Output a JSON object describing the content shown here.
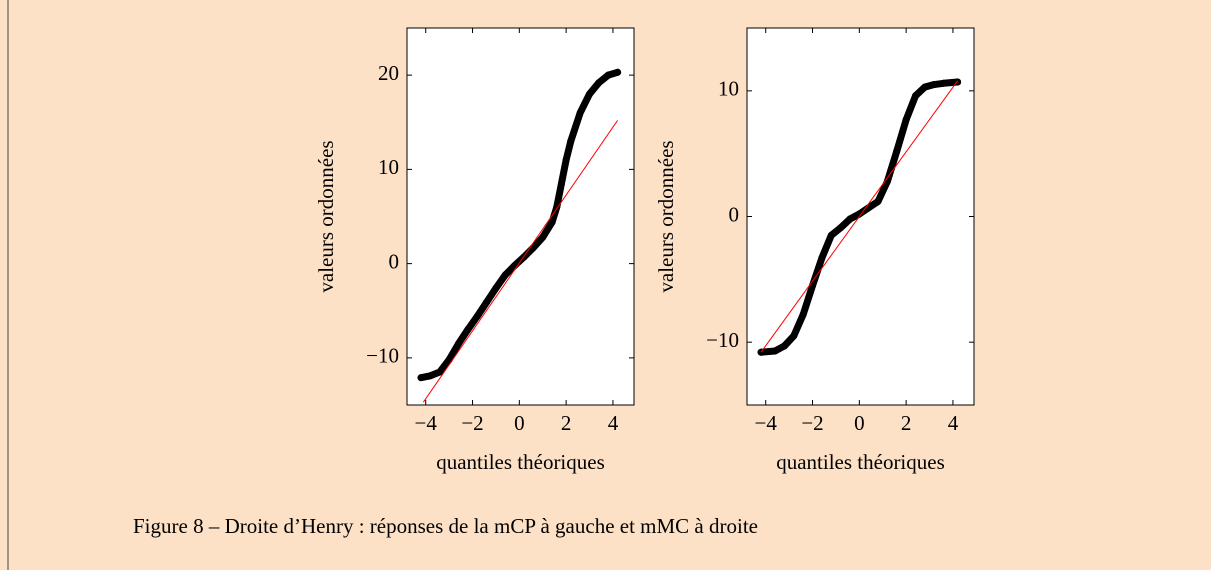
{
  "chart_data": [
    {
      "type": "scatter",
      "xlabel": "quantiles théoriques",
      "ylabel": "valeurs ordonnées",
      "xlim": [
        -4.8,
        4.9
      ],
      "ylim": [
        -15,
        25
      ],
      "xticks": [
        {
          "value": -4,
          "label": "−4"
        },
        {
          "value": -2,
          "label": "−2"
        },
        0,
        2,
        4
      ],
      "yticks": [
        {
          "value": -10,
          "label": "−10"
        },
        0,
        10,
        20
      ],
      "series": [
        {
          "color": "#000000",
          "x": [
            -4.2,
            -3.8,
            -3.4,
            -3.0,
            -2.6,
            -2.2,
            -1.8,
            -1.4,
            -1.0,
            -0.6,
            -0.2,
            0.2,
            0.6,
            1.0,
            1.4,
            1.6,
            1.8,
            2.0,
            2.2,
            2.6,
            3.0,
            3.4,
            3.8,
            4.2
          ],
          "values": [
            -12.1,
            -11.9,
            -11.5,
            -10.2,
            -8.5,
            -7.0,
            -5.6,
            -4.1,
            -2.6,
            -1.2,
            -0.2,
            0.7,
            1.7,
            2.8,
            4.4,
            6.0,
            8.5,
            11.0,
            13.0,
            16.0,
            18.0,
            19.2,
            20.0,
            20.3
          ]
        },
        {
          "type": "line",
          "color": "#ff0000",
          "x": [
            -4.1,
            4.2
          ],
          "values": [
            -14.7,
            15.2
          ]
        }
      ]
    },
    {
      "type": "scatter",
      "xlabel": "quantiles théoriques",
      "ylabel": "valeurs ordonnées",
      "xlim": [
        -4.8,
        4.9
      ],
      "ylim": [
        -15,
        15
      ],
      "xticks": [
        {
          "value": -4,
          "label": "−4"
        },
        {
          "value": -2,
          "label": "−2"
        },
        0,
        2,
        4
      ],
      "yticks": [
        {
          "value": -10,
          "label": "−10"
        },
        0,
        10
      ],
      "series": [
        {
          "color": "#000000",
          "x": [
            -4.2,
            -3.6,
            -3.2,
            -2.8,
            -2.4,
            -2.0,
            -1.6,
            -1.2,
            -0.8,
            -0.4,
            0.0,
            0.4,
            0.8,
            1.2,
            1.6,
            2.0,
            2.4,
            2.8,
            3.2,
            3.6,
            4.2
          ],
          "values": [
            -10.8,
            -10.7,
            -10.3,
            -9.5,
            -7.8,
            -5.5,
            -3.3,
            -1.5,
            -0.9,
            -0.2,
            0.2,
            0.7,
            1.2,
            2.8,
            5.2,
            7.7,
            9.6,
            10.3,
            10.5,
            10.6,
            10.7
          ]
        },
        {
          "type": "line",
          "color": "#ff0000",
          "x": [
            -4.2,
            4.2
          ],
          "values": [
            -10.8,
            10.8
          ]
        }
      ]
    }
  ],
  "caption": "Figure 8 – Droite d’Henry : réponses de la mCP à gauche et mMC à droite"
}
